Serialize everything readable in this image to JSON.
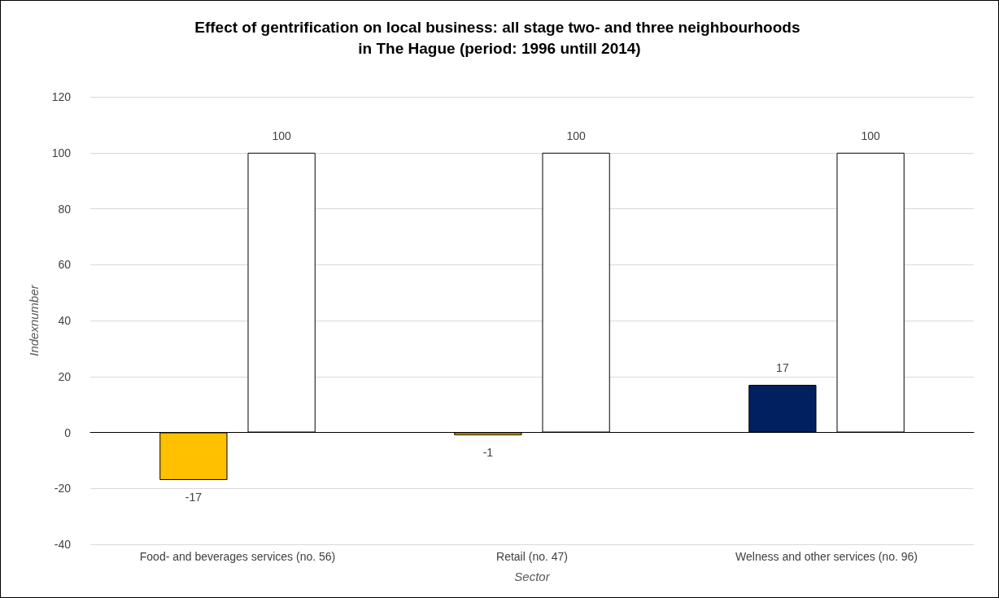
{
  "chart_data": {
    "type": "bar",
    "title": "Effect of gentrification on local business: all stage two- and three neighbourhoods in The Hague (period: 1996 untill 2014)",
    "categories": [
      "Food- and beverages services (no. 56)",
      "Retail (no. 47)",
      "Welness and other services (no. 96)"
    ],
    "series": [
      {
        "colors": [
          "#ffc000",
          "#ffc000",
          "#002060"
        ],
        "values": [
          -17,
          -1,
          17
        ]
      },
      {
        "color": "#ffffff",
        "values": [
          100,
          100,
          100
        ]
      }
    ],
    "xlabel": "Sector",
    "ylabel": "Indexnumber",
    "ylim": [
      -40,
      120
    ],
    "yticks": [
      -40,
      -20,
      0,
      20,
      40,
      60,
      80,
      100,
      120
    ],
    "grid": "y",
    "data_labels": true
  }
}
